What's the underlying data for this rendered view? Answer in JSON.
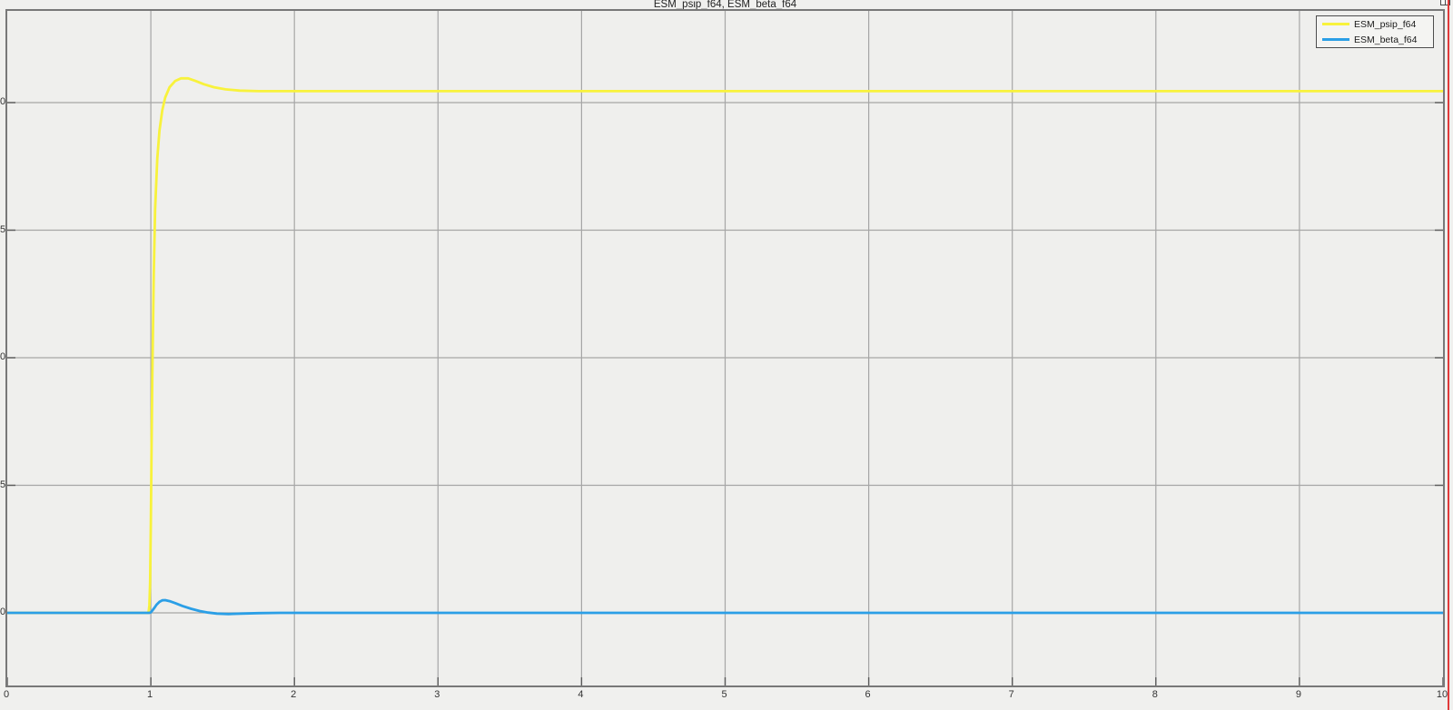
{
  "title": "ESM_psip_f64, ESM_beta_f64",
  "legend": {
    "items": [
      {
        "label": "ESM_psip_f64",
        "color": "#f8f23c"
      },
      {
        "label": "ESM_beta_f64",
        "color": "#2b9fe6"
      }
    ]
  },
  "cursor_line_color": "#e03a3a",
  "colors": {
    "page_background": "#f0f0ee",
    "plot_background": "#efefed",
    "grid": "#a6a6a6",
    "border": "#787878",
    "tick": "#5a5a5a"
  },
  "chart_data": {
    "type": "line",
    "title": "ESM_psip_f64, ESM_beta_f64",
    "xlabel": "",
    "ylabel": "",
    "xlim": [
      0,
      10
    ],
    "ylim": [
      -2.85,
      23.6
    ],
    "x_ticks": [
      0,
      1,
      2,
      3,
      4,
      5,
      6,
      7,
      8,
      9,
      10
    ],
    "y_gridline_values": [
      0,
      5,
      10,
      15,
      20
    ],
    "y_tick_labels_visible": [
      "0",
      "5",
      "0",
      "5",
      "0"
    ],
    "grid": true,
    "legend_position": "top-right",
    "series": [
      {
        "name": "ESM_psip_f64",
        "color": "#f8f23c",
        "width": 2.8,
        "points": [
          [
            0,
            0
          ],
          [
            0.98,
            0
          ],
          [
            0.985,
            0.05
          ],
          [
            0.99,
            0.3
          ],
          [
            0.995,
            1.2
          ],
          [
            1.0,
            3.5
          ],
          [
            1.005,
            6.5
          ],
          [
            1.01,
            9.2
          ],
          [
            1.02,
            13.2
          ],
          [
            1.03,
            15.8
          ],
          [
            1.045,
            17.8
          ],
          [
            1.06,
            18.9
          ],
          [
            1.08,
            19.7
          ],
          [
            1.1,
            20.2
          ],
          [
            1.13,
            20.6
          ],
          [
            1.17,
            20.85
          ],
          [
            1.21,
            20.95
          ],
          [
            1.26,
            20.95
          ],
          [
            1.31,
            20.85
          ],
          [
            1.37,
            20.72
          ],
          [
            1.44,
            20.6
          ],
          [
            1.52,
            20.52
          ],
          [
            1.62,
            20.47
          ],
          [
            1.75,
            20.45
          ],
          [
            2,
            20.45
          ],
          [
            3,
            20.45
          ],
          [
            5,
            20.45
          ],
          [
            7,
            20.45
          ],
          [
            10,
            20.45
          ]
        ]
      },
      {
        "name": "ESM_beta_f64",
        "color": "#2b9fe6",
        "width": 2.8,
        "points": [
          [
            0,
            0
          ],
          [
            0.99,
            0
          ],
          [
            1.0,
            0.02
          ],
          [
            1.01,
            0.09
          ],
          [
            1.025,
            0.2
          ],
          [
            1.04,
            0.32
          ],
          [
            1.06,
            0.43
          ],
          [
            1.08,
            0.49
          ],
          [
            1.1,
            0.5
          ],
          [
            1.13,
            0.46
          ],
          [
            1.17,
            0.38
          ],
          [
            1.22,
            0.27
          ],
          [
            1.28,
            0.16
          ],
          [
            1.34,
            0.07
          ],
          [
            1.4,
            0.01
          ],
          [
            1.46,
            -0.03
          ],
          [
            1.54,
            -0.045
          ],
          [
            1.63,
            -0.03
          ],
          [
            1.75,
            -0.01
          ],
          [
            1.9,
            0
          ],
          [
            3,
            0
          ],
          [
            5,
            0
          ],
          [
            7,
            0
          ],
          [
            10,
            0
          ]
        ]
      }
    ]
  }
}
